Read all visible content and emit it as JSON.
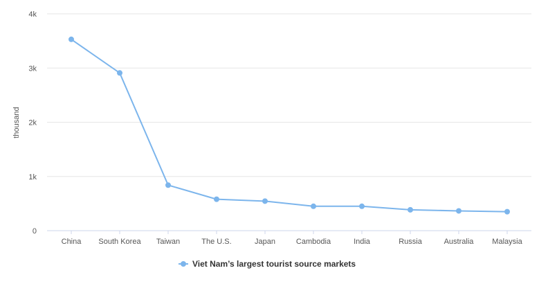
{
  "chart_data": {
    "type": "line",
    "title": "",
    "xlabel": "",
    "ylabel": "thousand",
    "categories": [
      "China",
      "South Korea",
      "Taiwan",
      "The U.S.",
      "Japan",
      "Cambodia",
      "India",
      "Russia",
      "Australia",
      "Malaysia"
    ],
    "series": [
      {
        "name": "Viet Nam’s largest tourist source markets",
        "values": [
          3530,
          2910,
          840,
          580,
          545,
          450,
          450,
          385,
          365,
          350
        ],
        "color": "#7cb5ec"
      }
    ],
    "ylim": [
      0,
      4000
    ],
    "y_ticks": [
      {
        "value": 0,
        "label": "0"
      },
      {
        "value": 1000,
        "label": "1k"
      },
      {
        "value": 2000,
        "label": "2k"
      },
      {
        "value": 3000,
        "label": "3k"
      },
      {
        "value": 4000,
        "label": "4k"
      }
    ],
    "grid": true,
    "legend_position": "bottom-center"
  }
}
